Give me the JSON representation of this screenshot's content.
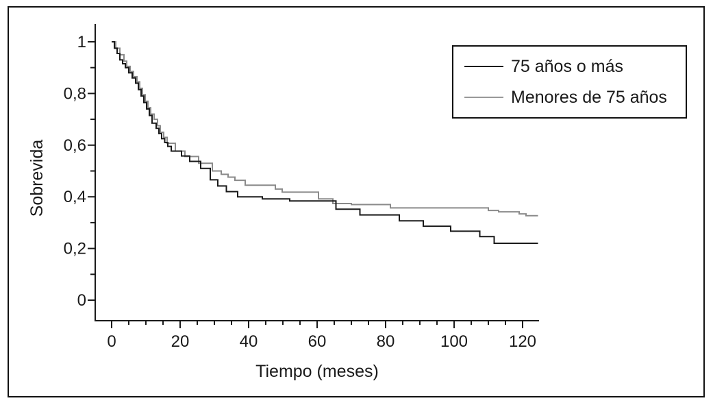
{
  "chart_data": {
    "type": "line",
    "subtype": "kaplan-meier-step-survival",
    "title": "",
    "xlabel": "Tiempo (meses)",
    "ylabel": "Sobrevida",
    "xlim": [
      0,
      124.5
    ],
    "ylim": [
      0,
      1
    ],
    "grid": false,
    "legend_position": "top-right",
    "axis_color": "#1a1a1a",
    "x_ticks": {
      "major": [
        0,
        20,
        40,
        60,
        80,
        100,
        120
      ],
      "labels": [
        "0",
        "20",
        "40",
        "60",
        "80",
        "100",
        "120"
      ],
      "minor_step": 5
    },
    "y_ticks": {
      "major": [
        1,
        0.8,
        0.6,
        0.4,
        0.2,
        0
      ],
      "labels": [
        "1",
        "0,8",
        "0,6",
        "0,4",
        "0,2",
        "0"
      ],
      "minor": [
        0.9,
        0.7,
        0.5,
        0.3,
        0.1
      ]
    },
    "series": [
      {
        "name": "75 años o más",
        "color": "#1a1a1a",
        "points": [
          [
            0,
            1.0
          ],
          [
            0.8,
            0.975
          ],
          [
            1.6,
            0.955
          ],
          [
            2.4,
            0.93
          ],
          [
            3.2,
            0.915
          ],
          [
            4,
            0.9
          ],
          [
            5,
            0.88
          ],
          [
            6,
            0.86
          ],
          [
            7,
            0.84
          ],
          [
            7.8,
            0.815
          ],
          [
            8.6,
            0.79
          ],
          [
            9.4,
            0.765
          ],
          [
            10.2,
            0.74
          ],
          [
            11,
            0.715
          ],
          [
            11.8,
            0.685
          ],
          [
            13,
            0.665
          ],
          [
            13.8,
            0.645
          ],
          [
            14.6,
            0.625
          ],
          [
            15.5,
            0.61
          ],
          [
            16.4,
            0.595
          ],
          [
            17.4,
            0.577
          ],
          [
            20.4,
            0.558
          ],
          [
            22.8,
            0.537
          ],
          [
            26,
            0.51
          ],
          [
            28.8,
            0.466
          ],
          [
            31,
            0.442
          ],
          [
            33.5,
            0.42
          ],
          [
            36.8,
            0.4
          ],
          [
            44,
            0.392
          ],
          [
            52,
            0.384
          ],
          [
            65.5,
            0.352
          ],
          [
            72.5,
            0.33
          ],
          [
            84,
            0.307
          ],
          [
            91,
            0.286
          ],
          [
            99,
            0.267
          ],
          [
            107.5,
            0.246
          ],
          [
            111.7,
            0.22
          ]
        ]
      },
      {
        "name": "Menores de 75 años",
        "color": "#8a8a8a",
        "points": [
          [
            0,
            1.0
          ],
          [
            1.2,
            0.975
          ],
          [
            2.4,
            0.95
          ],
          [
            3.6,
            0.925
          ],
          [
            4.4,
            0.905
          ],
          [
            5.4,
            0.885
          ],
          [
            6.4,
            0.865
          ],
          [
            7.4,
            0.845
          ],
          [
            8.2,
            0.82
          ],
          [
            9,
            0.795
          ],
          [
            9.8,
            0.77
          ],
          [
            10.6,
            0.745
          ],
          [
            11.4,
            0.72
          ],
          [
            12.4,
            0.7
          ],
          [
            13.4,
            0.675
          ],
          [
            14.2,
            0.65
          ],
          [
            15.2,
            0.63
          ],
          [
            16.2,
            0.607
          ],
          [
            18.6,
            0.577
          ],
          [
            21.4,
            0.556
          ],
          [
            25.4,
            0.53
          ],
          [
            29.4,
            0.5
          ],
          [
            32,
            0.487
          ],
          [
            34,
            0.476
          ],
          [
            36,
            0.464
          ],
          [
            39,
            0.445
          ],
          [
            47.8,
            0.43
          ],
          [
            49.8,
            0.418
          ],
          [
            60.4,
            0.392
          ],
          [
            64.6,
            0.374
          ],
          [
            70,
            0.37
          ],
          [
            81.4,
            0.357
          ],
          [
            110,
            0.347
          ],
          [
            113,
            0.342
          ],
          [
            119,
            0.334
          ],
          [
            121,
            0.327
          ]
        ]
      }
    ]
  }
}
